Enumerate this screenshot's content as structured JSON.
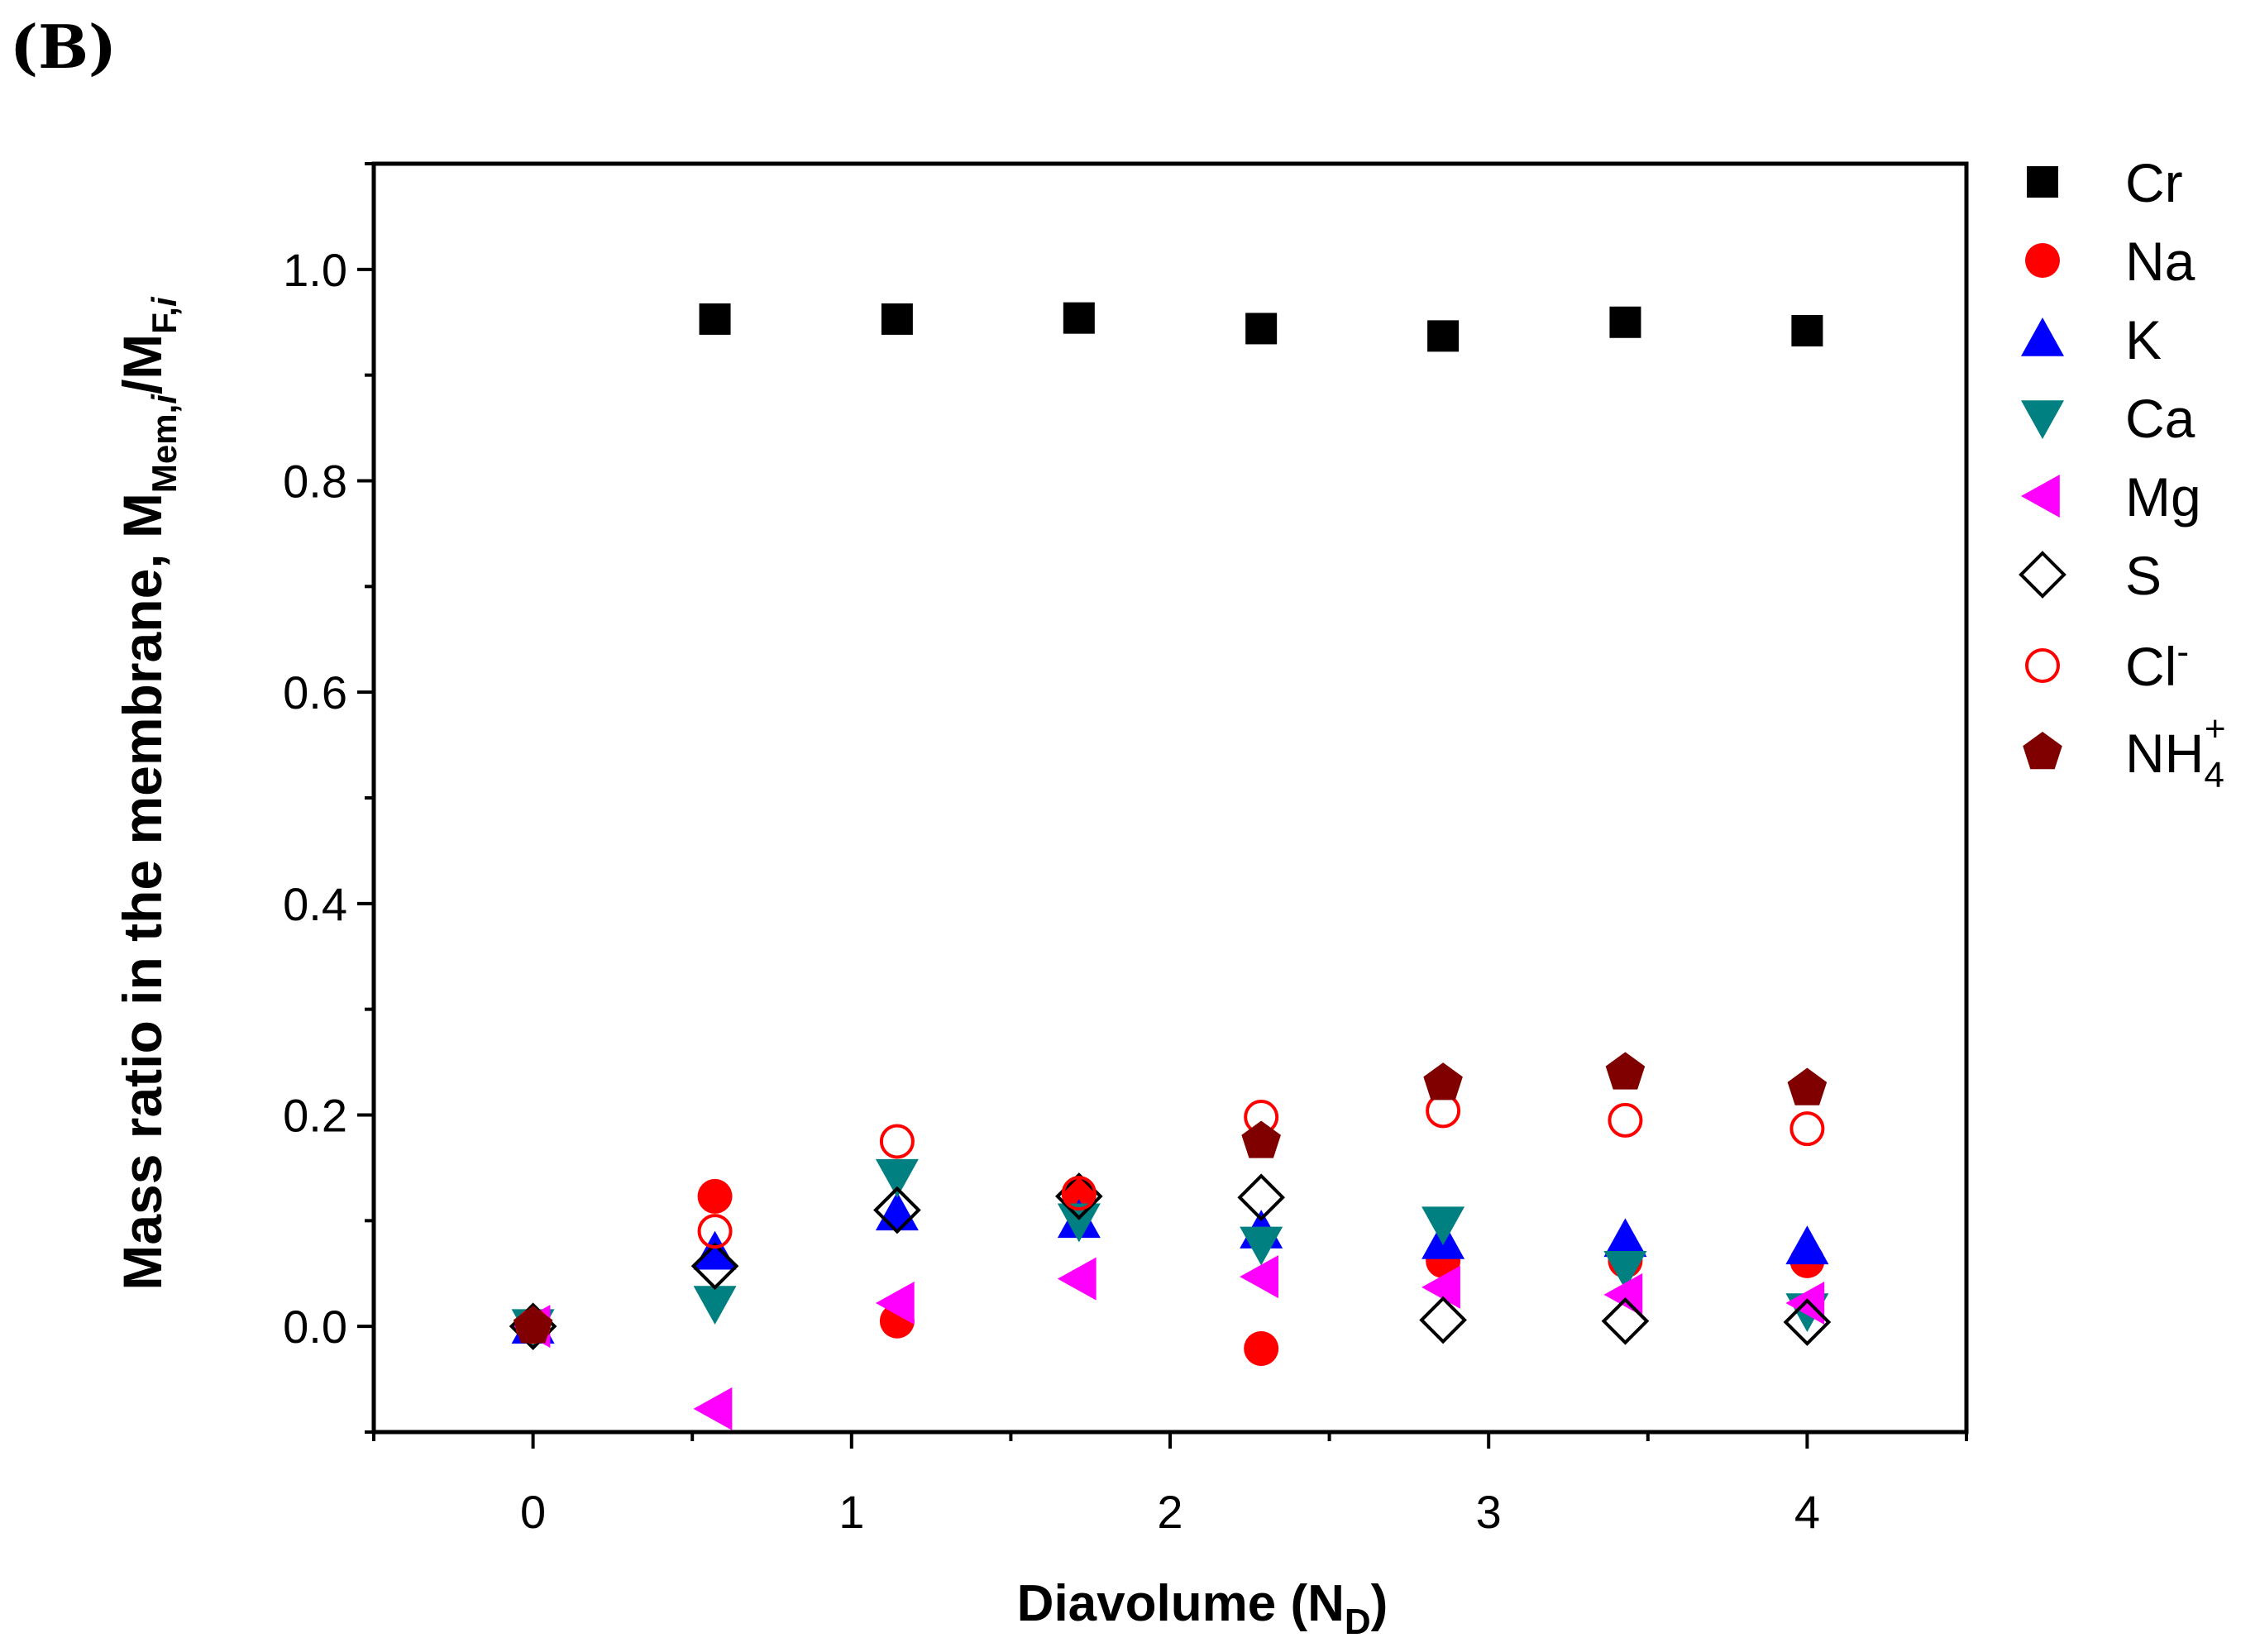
{
  "panel_label": "(B)",
  "chart_data": {
    "type": "scatter",
    "title": "",
    "xlabel": {
      "main": "Diavolume (N",
      "sub": "D",
      "tail": ")"
    },
    "ylabel": {
      "main": "Mass ratio in the membrane, M",
      "sub1": "Mem,",
      "sub1_italic": "i",
      "mid": "/M",
      "sub2": "F,",
      "sub2_italic": "i"
    },
    "xlim": [
      -0.5,
      4.5
    ],
    "ylim": [
      -0.1,
      1.1
    ],
    "xticks": [
      "0",
      "1",
      "2",
      "3",
      "4"
    ],
    "yticks": [
      "0.0",
      "0.2",
      "0.4",
      "0.6",
      "0.8",
      "1.0"
    ],
    "grid": false,
    "legend_position": "right-outside",
    "x": [
      0,
      0.571,
      1.143,
      1.714,
      2.286,
      2.857,
      3.429,
      4.0
    ],
    "series": [
      {
        "name": "Cr",
        "marker": "square",
        "color": "#000000",
        "filled": true,
        "values": [
          null,
          0.953,
          0.953,
          0.954,
          0.944,
          0.937,
          0.95,
          0.942
        ]
      },
      {
        "name": "Na",
        "marker": "circle",
        "color": "#ff0000",
        "filled": true,
        "values": [
          0.0,
          0.123,
          0.005,
          0.125,
          -0.021,
          0.062,
          0.062,
          0.062
        ]
      },
      {
        "name": "K",
        "marker": "triangle-up",
        "color": "#0000ff",
        "filled": true,
        "values": [
          0.0,
          0.07,
          0.107,
          0.1,
          0.09,
          0.08,
          0.082,
          0.075
        ]
      },
      {
        "name": "Ca",
        "marker": "triangle-down",
        "color": "#008080",
        "filled": true,
        "values": [
          0.0,
          0.022,
          0.142,
          0.1,
          0.078,
          0.097,
          0.055,
          0.015
        ]
      },
      {
        "name": "Mg",
        "marker": "triangle-left",
        "color": "#ff00ff",
        "filled": true,
        "values": [
          0.0,
          -0.078,
          0.022,
          0.045,
          0.047,
          0.037,
          0.03,
          0.022
        ]
      },
      {
        "name": "S",
        "marker": "diamond",
        "color": "#000000",
        "filled": false,
        "values": [
          0.0,
          0.057,
          0.11,
          0.123,
          0.122,
          0.006,
          0.005,
          0.004
        ]
      },
      {
        "name": "Cl",
        "name_sup": "-",
        "marker": "circle",
        "color": "#ff0000",
        "filled": false,
        "values": [
          0.0,
          0.09,
          0.175,
          0.126,
          0.198,
          0.204,
          0.195,
          0.187
        ]
      },
      {
        "name": "NH",
        "name_sub": "4",
        "name_sup": "+",
        "marker": "pentagon",
        "color": "#800000",
        "filled": true,
        "values": [
          0.0,
          null,
          null,
          null,
          0.175,
          0.23,
          0.24,
          0.225
        ]
      }
    ]
  }
}
